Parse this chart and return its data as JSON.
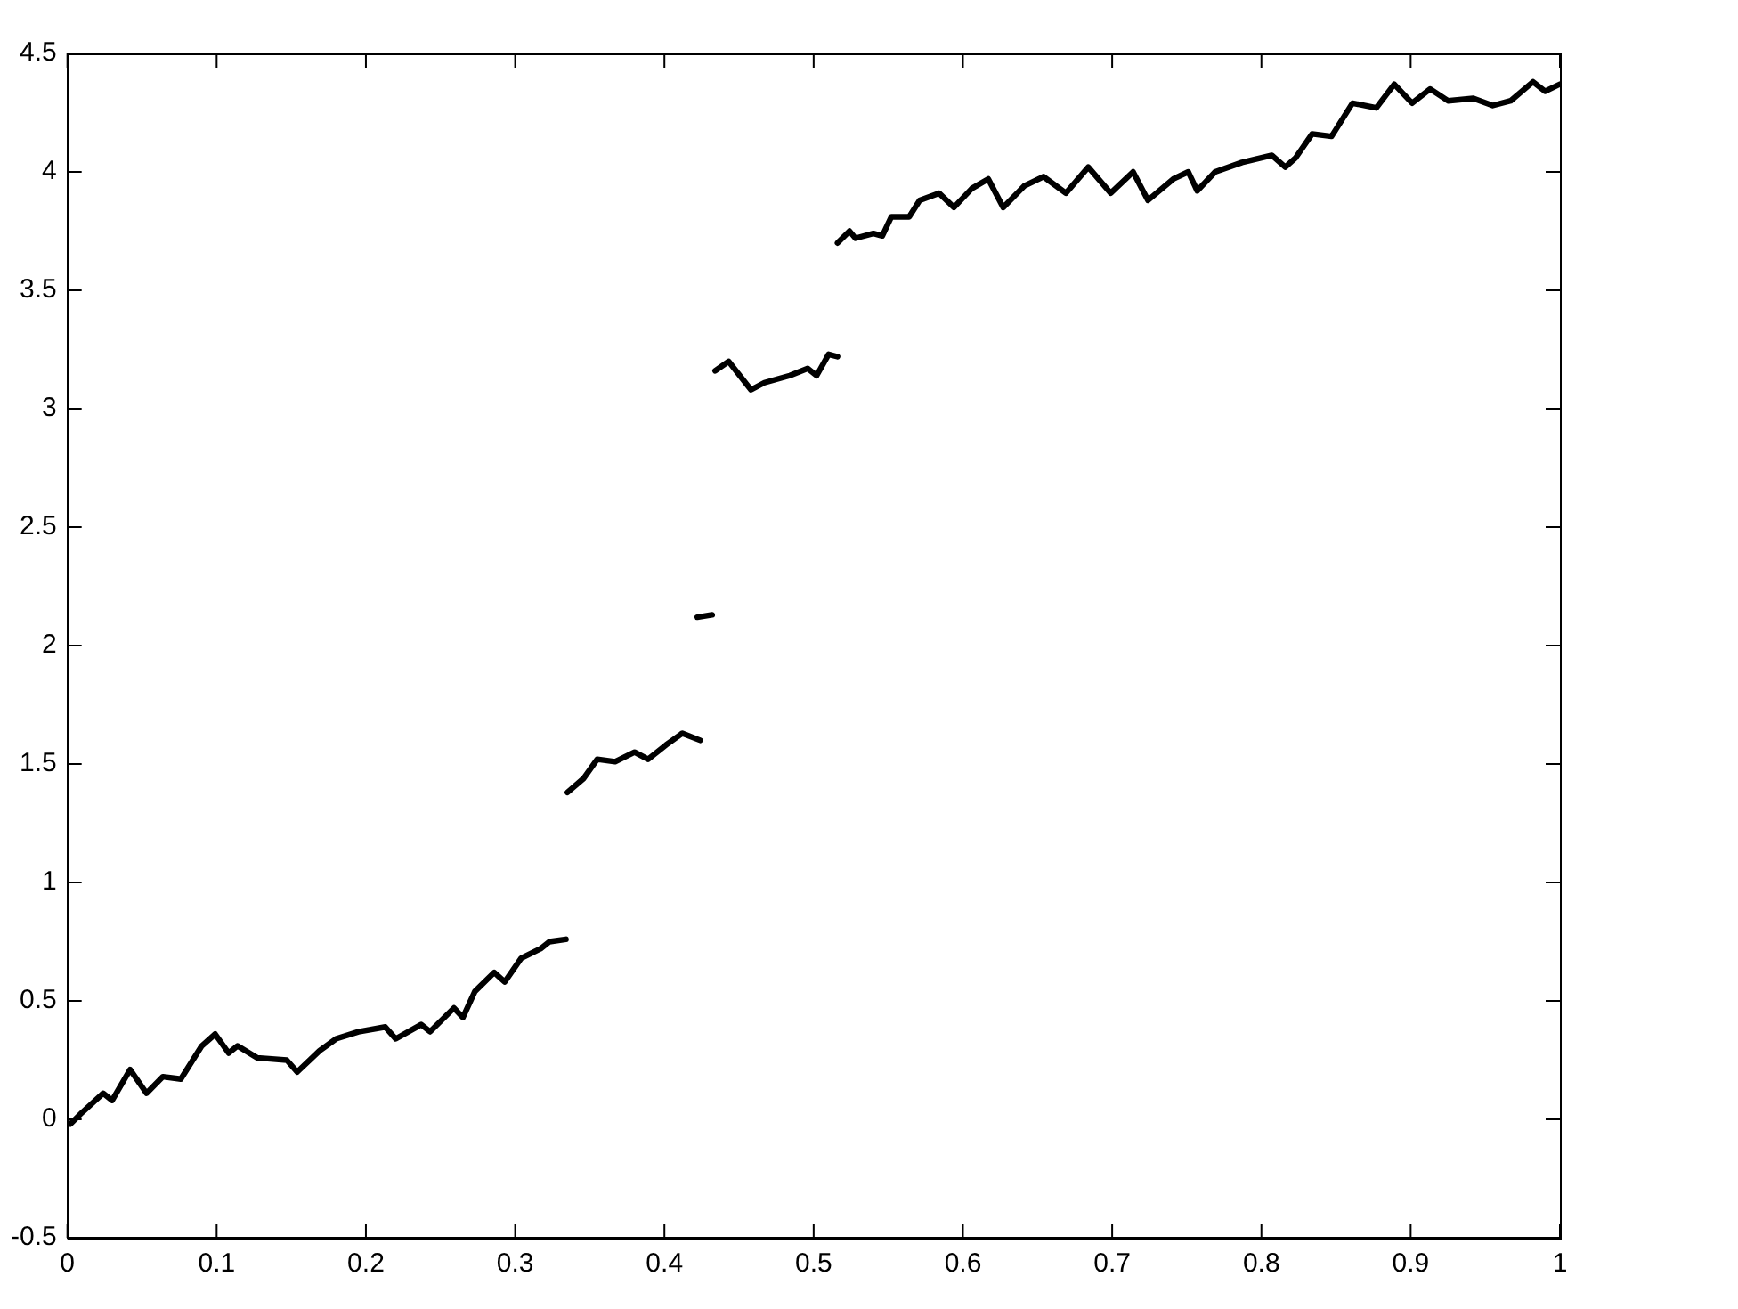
{
  "chart_data": {
    "type": "line",
    "xlim": [
      0,
      1
    ],
    "ylim": [
      -0.5,
      4.5
    ],
    "xticks": [
      0,
      0.1,
      0.2,
      0.3,
      0.4,
      0.5,
      0.6,
      0.7,
      0.8,
      0.9,
      1
    ],
    "yticks": [
      -0.5,
      0,
      0.5,
      1,
      1.5,
      2,
      2.5,
      3,
      3.5,
      4,
      4.5
    ],
    "grid": false,
    "legend": false,
    "marker": "none",
    "line_style": "solid",
    "series": [
      {
        "color": "#000000",
        "x": [
          0.002,
          0.01,
          0.024,
          0.03,
          0.042,
          0.053,
          0.064,
          0.076,
          0.09,
          0.099,
          0.108,
          0.114,
          0.127,
          0.147,
          0.154,
          0.169,
          0.18,
          0.195,
          0.213,
          0.22,
          0.237,
          0.243,
          0.259,
          0.265,
          0.273,
          0.286,
          0.293,
          0.304,
          0.317,
          0.323,
          0.334
        ],
        "values": [
          -0.02,
          0.03,
          0.11,
          0.08,
          0.21,
          0.11,
          0.18,
          0.17,
          0.31,
          0.36,
          0.28,
          0.31,
          0.26,
          0.25,
          0.2,
          0.29,
          0.34,
          0.37,
          0.39,
          0.34,
          0.4,
          0.37,
          0.47,
          0.43,
          0.54,
          0.62,
          0.58,
          0.68,
          0.72,
          0.75,
          0.76
        ]
      },
      {
        "color": "#000000",
        "x": [
          0.335,
          0.346,
          0.355,
          0.367,
          0.38,
          0.389,
          0.401,
          0.412,
          0.424
        ],
        "values": [
          1.38,
          1.44,
          1.52,
          1.51,
          1.55,
          1.52,
          1.58,
          1.63,
          1.6
        ]
      },
      {
        "color": "#000000",
        "x": [
          0.422,
          0.432
        ],
        "values": [
          2.12,
          2.13
        ]
      },
      {
        "color": "#000000",
        "x": [
          0.434,
          0.443,
          0.458,
          0.467,
          0.484,
          0.496,
          0.502,
          0.51,
          0.516
        ],
        "values": [
          3.16,
          3.2,
          3.08,
          3.11,
          3.14,
          3.17,
          3.14,
          3.23,
          3.22
        ]
      },
      {
        "color": "#000000",
        "x": [
          0.516,
          0.524,
          0.528,
          0.54,
          0.546,
          0.552,
          0.564,
          0.571,
          0.584,
          0.594,
          0.606,
          0.617,
          0.627,
          0.641,
          0.654,
          0.669,
          0.684,
          0.699,
          0.714,
          0.724,
          0.741,
          0.751,
          0.757,
          0.769,
          0.787,
          0.807,
          0.816,
          0.823,
          0.834,
          0.847,
          0.861,
          0.877,
          0.889,
          0.901,
          0.913,
          0.925,
          0.942,
          0.955,
          0.967,
          0.982,
          0.99,
          1.0
        ],
        "values": [
          3.7,
          3.75,
          3.72,
          3.74,
          3.73,
          3.81,
          3.81,
          3.88,
          3.91,
          3.85,
          3.93,
          3.97,
          3.85,
          3.94,
          3.98,
          3.91,
          4.02,
          3.91,
          4.0,
          3.88,
          3.97,
          4.0,
          3.92,
          4.0,
          4.04,
          4.07,
          4.02,
          4.06,
          4.16,
          4.15,
          4.29,
          4.27,
          4.37,
          4.29,
          4.35,
          4.3,
          4.31,
          4.28,
          4.3,
          4.38,
          4.34,
          4.37
        ]
      }
    ]
  }
}
